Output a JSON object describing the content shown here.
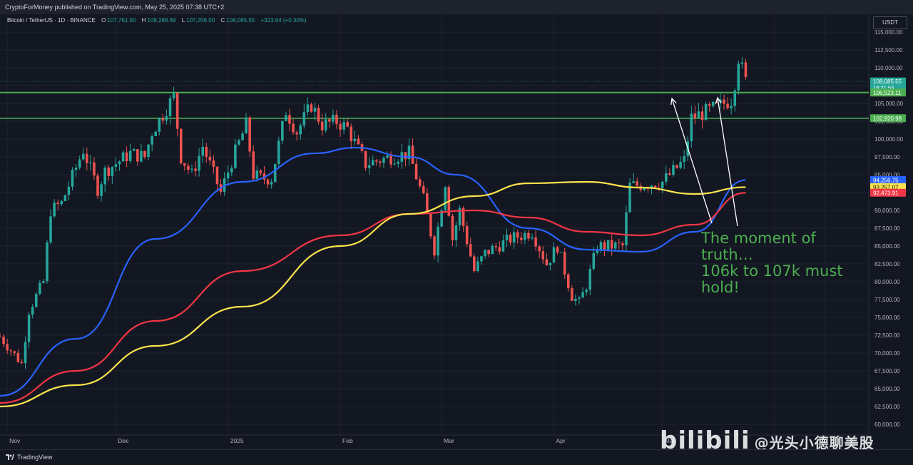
{
  "header": {
    "published_line": "CryptoForMoney published on TradingView.com, May 25, 2025 07:38 UTC+2"
  },
  "legend": {
    "symbol": "Bitcoin / TetherUS · 1D · BINANCE",
    "o_label": "O",
    "o_value": "107,761.90",
    "h_label": "H",
    "h_value": "108,288.69",
    "l_label": "L",
    "l_value": "107,206.00",
    "c_label": "C",
    "c_value": "108,085.55",
    "change": "+323.64 (+0.30%)"
  },
  "currency": "USDT",
  "annotation": {
    "line1": "The moment of",
    "line2": "truth…",
    "line3": "106k to 107k must",
    "line4": "hold!"
  },
  "footer": {
    "brand": "TradingView"
  },
  "watermark": {
    "text": "bilibili",
    "author": "@光头小德聊美股"
  },
  "colors": {
    "up": "#26a69a",
    "down": "#ef5350",
    "sma_blue": "#2962ff",
    "sma_red": "#f23645",
    "sma_yellow": "#fbe34c",
    "level_green": "#4caf50",
    "background": "#131722"
  },
  "chart_data": {
    "type": "line",
    "subtype": "candlestick",
    "title": "Bitcoin / TetherUS · 1D · BINANCE",
    "ylim": [
      58500,
      117500
    ],
    "y_scale": "linear",
    "grid": true,
    "y_ticks": [
      "115,000.00",
      "112,500.00",
      "110,000.00",
      "107,500.00",
      "105,000.00",
      "102,500.00",
      "100,000.00",
      "97,500.00",
      "95,000.00",
      "92,500.00",
      "90,000.00",
      "87,500.00",
      "85,000.00",
      "82,500.00",
      "80,000.00",
      "77,500.00",
      "75,000.00",
      "72,500.00",
      "70,000.00",
      "67,500.00",
      "65,000.00",
      "62,500.00",
      "60,000.00"
    ],
    "y_tick_values": [
      115000,
      112500,
      110000,
      107500,
      105000,
      102500,
      100000,
      97500,
      95000,
      92500,
      90000,
      87500,
      85000,
      82500,
      80000,
      77500,
      75000,
      72500,
      70000,
      67500,
      65000,
      62500,
      60000
    ],
    "x_ticks": [
      {
        "label": "Nov",
        "date": "2024-11-01"
      },
      {
        "label": "Dec",
        "date": "2024-12-01"
      },
      {
        "label": "2025",
        "date": "2025-01-01"
      },
      {
        "label": "Feb",
        "date": "2025-02-01"
      },
      {
        "label": "Mar",
        "date": "2025-03-01"
      },
      {
        "label": "Apr",
        "date": "2025-04-01"
      },
      {
        "label": "May",
        "date": "2025-05-01"
      }
    ],
    "x_range": [
      "2024-10-30",
      "2025-06-27"
    ],
    "price_labels": [
      {
        "value": 108085.55,
        "text": "108,085.55",
        "sub": "18:21:53",
        "color": "#26a69a"
      },
      {
        "value": 106523.11,
        "text": "106,523.11",
        "color": "#4caf50"
      },
      {
        "value": 102920.98,
        "text": "102,920.98",
        "color": "#4caf50"
      },
      {
        "value": 94256.75,
        "text": "94,256.75",
        "color": "#2962ff"
      },
      {
        "value": 93257.07,
        "text": "93,257.07",
        "color": "#fbe34c"
      },
      {
        "value": 92473.91,
        "text": "92,473.91",
        "color": "#f23645"
      }
    ],
    "horizontal_levels": [
      106523.11,
      102920.98
    ],
    "candle_keyframes": {
      "dates": [
        "2024-10-30",
        "2024-11-05",
        "2024-11-07",
        "2024-11-11",
        "2024-11-13",
        "2024-11-16",
        "2024-11-22",
        "2024-11-26",
        "2024-11-28",
        "2024-12-05",
        "2024-12-09",
        "2024-12-11",
        "2024-12-17",
        "2024-12-19",
        "2024-12-22",
        "2024-12-25",
        "2024-12-30",
        "2025-01-02",
        "2025-01-06",
        "2025-01-08",
        "2025-01-10",
        "2025-01-13",
        "2025-01-17",
        "2025-01-20",
        "2025-01-24",
        "2025-01-27",
        "2025-01-31",
        "2025-02-03",
        "2025-02-08",
        "2025-02-15",
        "2025-02-20",
        "2025-02-24",
        "2025-02-27",
        "2025-03-02",
        "2025-03-04",
        "2025-03-06",
        "2025-03-10",
        "2025-03-13",
        "2025-03-20",
        "2025-03-26",
        "2025-03-30",
        "2025-04-02",
        "2025-04-06",
        "2025-04-08",
        "2025-04-10",
        "2025-04-13",
        "2025-04-20",
        "2025-04-22",
        "2025-04-24",
        "2025-05-01",
        "2025-05-07",
        "2025-05-09",
        "2025-05-14",
        "2025-05-20",
        "2025-05-21",
        "2025-05-22",
        "2025-05-24"
      ],
      "closes": [
        72300,
        68500,
        76000,
        80000,
        90000,
        91000,
        98500,
        93000,
        95500,
        98000,
        97500,
        101000,
        106000,
        97500,
        95000,
        99000,
        92500,
        96900,
        102000,
        95000,
        94500,
        94500,
        104000,
        101000,
        104800,
        102000,
        102500,
        101500,
        96500,
        97500,
        98000,
        91500,
        84500,
        94000,
        86000,
        90000,
        81500,
        84000,
        86000,
        87000,
        82500,
        85000,
        78000,
        77000,
        79500,
        85000,
        85000,
        93500,
        93500,
        94000,
        97000,
        103000,
        104000,
        105500,
        108000,
        111500,
        108085.55
      ]
    },
    "series": [
      {
        "name": "SMA blue",
        "color": "#2962ff",
        "x": [
          "2024-10-30",
          "2024-11-20",
          "2024-12-12",
          "2025-01-05",
          "2025-01-25",
          "2025-02-05",
          "2025-02-20",
          "2025-03-05",
          "2025-03-25",
          "2025-04-10",
          "2025-04-25",
          "2025-05-10",
          "2025-05-24"
        ],
        "values": [
          64000,
          72000,
          86000,
          94000,
          98000,
          98800,
          97500,
          95000,
          87500,
          84500,
          84200,
          87000,
          94256.75
        ]
      },
      {
        "name": "SMA red",
        "color": "#f23645",
        "x": [
          "2024-10-30",
          "2024-11-20",
          "2024-12-12",
          "2025-01-05",
          "2025-02-01",
          "2025-02-20",
          "2025-03-10",
          "2025-03-25",
          "2025-04-10",
          "2025-04-25",
          "2025-05-10",
          "2025-05-24"
        ],
        "values": [
          63000,
          67500,
          74500,
          81500,
          86500,
          89500,
          90000,
          89000,
          87000,
          86500,
          88000,
          92473.91
        ]
      },
      {
        "name": "SMA yellow",
        "color": "#fbe34c",
        "x": [
          "2024-10-30",
          "2024-11-20",
          "2024-12-12",
          "2025-01-05",
          "2025-02-01",
          "2025-02-20",
          "2025-03-10",
          "2025-03-25",
          "2025-04-10",
          "2025-04-25",
          "2025-05-10",
          "2025-05-24"
        ],
        "values": [
          62500,
          65500,
          71000,
          76500,
          85000,
          89500,
          92000,
          93800,
          94000,
          93200,
          92300,
          93257.07
        ]
      }
    ]
  }
}
